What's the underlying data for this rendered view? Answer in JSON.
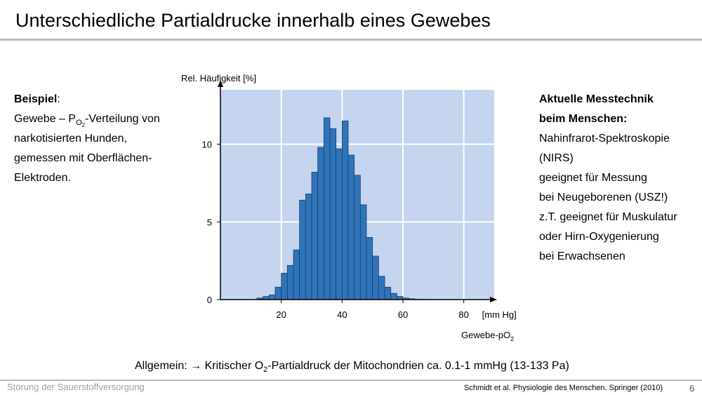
{
  "slide": {
    "title": "Unterschiedliche Partialdrucke innerhalb eines Gewebes",
    "example_label": "Beispiel",
    "example_colon": ":",
    "example_line1_pre": "Gewebe – P",
    "example_line1_sub": "O",
    "example_line1_subsub": "2",
    "example_line1_post": "-Verteilung von",
    "example_line2": "narkotisierten Hunden,",
    "example_line3": "gemessen mit Oberflächen-",
    "example_line4": "Elektroden.",
    "right_heading1": "Aktuelle Messtechnik",
    "right_heading2": "beim Menschen:",
    "right_lines": [
      "Nahinfrarot-Spektroskopie",
      "(NIRS)",
      "geeignet für Messung",
      "bei Neugeborenen (USZ!)",
      "z.T. geeignet für Muskulatur",
      "oder Hirn-Oxygenierung",
      "bei Erwachsenen"
    ],
    "bottom_pre": "Allgemein:  →  Kritischer O",
    "bottom_sub": "2",
    "bottom_post": "-Partialdruck  der Mitochondrien ca. 0.1-1 mmHg (13-133 Pa)",
    "footer_left": "Störung der Sauerstoffversorgung",
    "footer_right": "Schmidt et al.  Physiologie des Menschen. Springer (2010)",
    "page_number": "6"
  },
  "chart_data": {
    "type": "bar",
    "ylabel": "Rel. Häufigkeit [%]",
    "x_unit": "[mm Hg]",
    "xlabel_main": "Gewebe-pO",
    "xlabel_sub": "2",
    "x_ticks": [
      20,
      40,
      60,
      80
    ],
    "y_ticks": [
      0,
      5,
      10
    ],
    "xlim": [
      0,
      90
    ],
    "ylim": [
      0,
      13.5
    ],
    "bin_width": 2,
    "bins_start": [
      12,
      14,
      16,
      18,
      20,
      22,
      24,
      26,
      28,
      30,
      32,
      34,
      36,
      38,
      40,
      42,
      44,
      46,
      48,
      50,
      52,
      54,
      56,
      58,
      60,
      62,
      64,
      66,
      68,
      70
    ],
    "values": [
      0.1,
      0.2,
      0.3,
      0.8,
      1.7,
      2.2,
      3.2,
      6.4,
      6.8,
      8.2,
      9.8,
      11.7,
      11.0,
      9.7,
      11.5,
      9.3,
      8.0,
      6.1,
      4.0,
      2.8,
      1.5,
      0.8,
      0.4,
      0.2,
      0.1,
      0.05,
      0.02,
      0.01,
      0.0,
      0.0
    ],
    "plot_bg": "#c5d4ef",
    "bar_color": "#2e74b9",
    "grid": true
  }
}
